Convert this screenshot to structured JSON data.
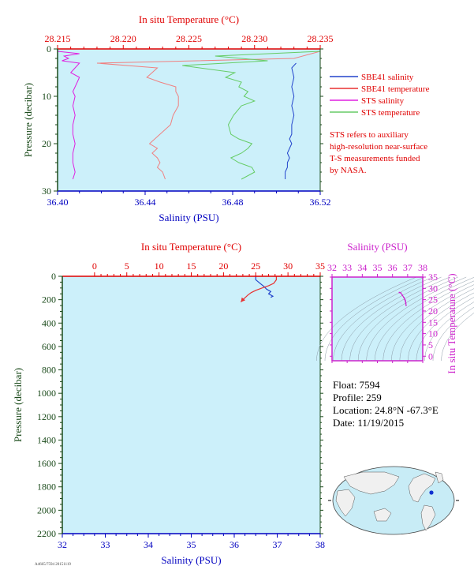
{
  "colors": {
    "plot_bg": "#ccf0fa",
    "temperature_axis": "#e00000",
    "salinity_axis": "#0000c0",
    "pressure_axis": "#1a4a1a",
    "sbe_salinity": "#2244cc",
    "sbe_temperature": "#e83030",
    "sts_salinity": "#e020e0",
    "sts_temperature": "#66cc66",
    "sbe_temperature_light": "#f08080",
    "ts_axis": "#cc22cc",
    "ts_contour": "#8a9aa6"
  },
  "legend": {
    "items": [
      {
        "label": "SBE41 salinity",
        "color": "#2244cc"
      },
      {
        "label": "SBE41 temperature",
        "color": "#e83030"
      },
      {
        "label": "STS salinity",
        "color": "#e020e0"
      },
      {
        "label": "STS temperature",
        "color": "#66cc66"
      }
    ],
    "note": [
      "STS refers to auxiliary",
      "high-resolution near-surface",
      "T-S measurements funded",
      "by NASA."
    ]
  },
  "info": {
    "float": "Float:  7594",
    "profile": "Profile:  259",
    "location": "Location:  24.8°N  -67.3°E",
    "date": "Date:  11/19/2015"
  },
  "footer_code": "A4665/7594 20151119",
  "chart_data": [
    {
      "type": "line",
      "panel": "near-surface",
      "top_axis_label": "In situ Temperature (°C)",
      "bottom_axis_label": "Salinity (PSU)",
      "ylabel": "Pressure (decibar)",
      "temp_range": [
        28.215,
        28.235
      ],
      "temp_ticks": [
        "28.215",
        "28.220",
        "28.225",
        "28.230",
        "28.235"
      ],
      "sal_range": [
        36.4,
        36.52
      ],
      "sal_ticks": [
        "36.40",
        "36.44",
        "36.48",
        "36.52"
      ],
      "pressure_range": [
        0,
        30
      ],
      "pressure_ticks": [
        "0",
        "10",
        "20",
        "30"
      ],
      "series": [
        {
          "name": "SBE41 salinity",
          "axis": "salinity",
          "pressure": [
            3,
            4,
            6,
            8,
            10,
            12,
            14,
            16,
            18,
            19,
            20,
            21,
            22,
            23,
            24,
            25,
            26,
            27.5
          ],
          "values": [
            36.509,
            36.507,
            36.508,
            36.507,
            36.508,
            36.507,
            36.508,
            36.507,
            36.507,
            36.506,
            36.507,
            36.506,
            36.505,
            36.506,
            36.505,
            36.505,
            36.504,
            36.504
          ]
        },
        {
          "name": "SBE41 temperature",
          "axis": "temperature",
          "pressure": [
            0.5,
            2,
            3,
            4,
            5,
            6,
            7,
            8,
            9,
            10,
            12,
            14,
            16,
            18,
            20,
            21,
            22,
            23,
            24,
            25,
            26,
            27.5
          ],
          "values": [
            28.235,
            28.233,
            28.218,
            28.2226,
            28.2222,
            28.2218,
            28.2228,
            28.224,
            28.224,
            28.2242,
            28.2242,
            28.2238,
            28.2236,
            28.2228,
            28.222,
            28.2226,
            28.2222,
            28.2226,
            28.2228,
            28.2226,
            28.223,
            28.2232
          ]
        },
        {
          "name": "STS salinity",
          "axis": "salinity",
          "pressure": [
            0.5,
            1,
            1.5,
            2,
            2.5,
            3,
            4,
            5,
            6,
            7,
            8,
            9,
            10,
            12,
            14,
            16,
            18,
            20,
            22,
            24,
            26,
            27.5
          ],
          "values": [
            36.4,
            36.41,
            36.403,
            36.405,
            36.402,
            36.41,
            36.408,
            36.406,
            36.41,
            36.409,
            36.408,
            36.407,
            36.408,
            36.407,
            36.408,
            36.407,
            36.407,
            36.408,
            36.407,
            36.407,
            36.408,
            36.407
          ]
        },
        {
          "name": "STS temperature",
          "axis": "temperature",
          "pressure": [
            0.5,
            1.5,
            2.5,
            3.5,
            5,
            6,
            7,
            8,
            9,
            10,
            11,
            12,
            14,
            16,
            18,
            19,
            20,
            21,
            22,
            23,
            24,
            25,
            26,
            27.5
          ],
          "values": [
            28.235,
            28.227,
            28.231,
            28.2245,
            28.2285,
            28.2278,
            28.229,
            28.2288,
            28.2295,
            28.2292,
            28.23,
            28.229,
            28.2284,
            28.228,
            28.2282,
            28.2288,
            28.2298,
            28.2295,
            28.229,
            28.2282,
            28.2288,
            28.2298,
            28.23,
            28.229
          ]
        }
      ]
    },
    {
      "type": "line",
      "panel": "full-profile",
      "top_axis_label": "In situ Temperature (°C)",
      "bottom_axis_label": "Salinity (PSU)",
      "ylabel": "Pressure (decibar)",
      "temp_range": [
        -5,
        35
      ],
      "temp_ticks": [
        "0",
        "5",
        "10",
        "15",
        "20",
        "25",
        "30",
        "35"
      ],
      "sal_range": [
        32,
        38
      ],
      "sal_ticks": [
        "32",
        "33",
        "34",
        "35",
        "36",
        "37",
        "38"
      ],
      "pressure_range": [
        0,
        2200
      ],
      "pressure_ticks": [
        "0",
        "200",
        "400",
        "600",
        "800",
        "1000",
        "1200",
        "1400",
        "1600",
        "1800",
        "2000",
        "2200"
      ],
      "series": [
        {
          "name": "SBE41 salinity",
          "axis": "salinity",
          "pressure": [
            0,
            30,
            60,
            90,
            110,
            130,
            150,
            170,
            180
          ],
          "values": [
            36.5,
            36.5,
            36.6,
            36.7,
            36.75,
            36.85,
            36.8,
            36.9,
            36.85
          ]
        },
        {
          "name": "SBE41 temperature",
          "axis": "temperature",
          "pressure": [
            0,
            30,
            60,
            80,
            100,
            120,
            140,
            160,
            180,
            200,
            220
          ],
          "values": [
            28.2,
            28.2,
            27.8,
            27.0,
            26.0,
            25.0,
            24.3,
            23.8,
            23.4,
            23.0,
            22.7
          ]
        }
      ]
    },
    {
      "type": "scatter",
      "panel": "ts-diagram",
      "top_axis_label": "Salinity (PSU)",
      "right_axis_label": "In situ Temperature (°C)",
      "sal_range": [
        32,
        38
      ],
      "sal_ticks": [
        "32",
        "33",
        "34",
        "35",
        "36",
        "37",
        "38"
      ],
      "temp_range": [
        -2,
        35
      ],
      "temp_ticks": [
        "0",
        "5",
        "10",
        "15",
        "20",
        "25",
        "30",
        "35"
      ],
      "series": [
        {
          "name": "T-S profile",
          "salinity": [
            36.45,
            36.55,
            36.65,
            36.75,
            36.82,
            36.85,
            36.88,
            36.9
          ],
          "temperature": [
            28.2,
            28.0,
            27.0,
            26.0,
            25.0,
            24.5,
            23.5,
            22.5
          ]
        }
      ]
    }
  ]
}
